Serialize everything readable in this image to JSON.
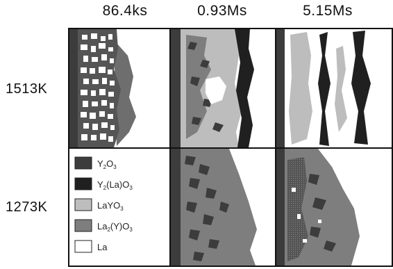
{
  "columns": [
    "86.4ks",
    "0.93Ms",
    "5.15Ms"
  ],
  "rows": [
    "1513K",
    "1273K"
  ],
  "legend": [
    {
      "parts": [
        [
          "Y",
          ""
        ],
        [
          "2",
          "sub"
        ],
        [
          "O",
          ""
        ],
        [
          "3",
          "sub"
        ]
      ],
      "text": "Y2O3",
      "color": "#3c3c3c"
    },
    {
      "parts": [
        [
          "Y",
          ""
        ],
        [
          "2",
          "sub"
        ],
        [
          "(La)O",
          ""
        ],
        [
          "3",
          "sub"
        ]
      ],
      "text": "Y2(La)O3",
      "color": "#202020"
    },
    {
      "parts": [
        [
          "LaYO",
          ""
        ],
        [
          "3",
          "sub"
        ]
      ],
      "text": "LaYO3",
      "color": "#bdbdbd"
    },
    {
      "parts": [
        [
          "La",
          ""
        ],
        [
          "2",
          "sub"
        ],
        [
          "(Y)O",
          ""
        ],
        [
          "3",
          "sub"
        ]
      ],
      "text": "La2(Y)O3",
      "color": "#7e7e7e"
    },
    {
      "parts": [
        [
          "La",
          ""
        ]
      ],
      "text": "La",
      "color": "#ffffff"
    }
  ]
}
